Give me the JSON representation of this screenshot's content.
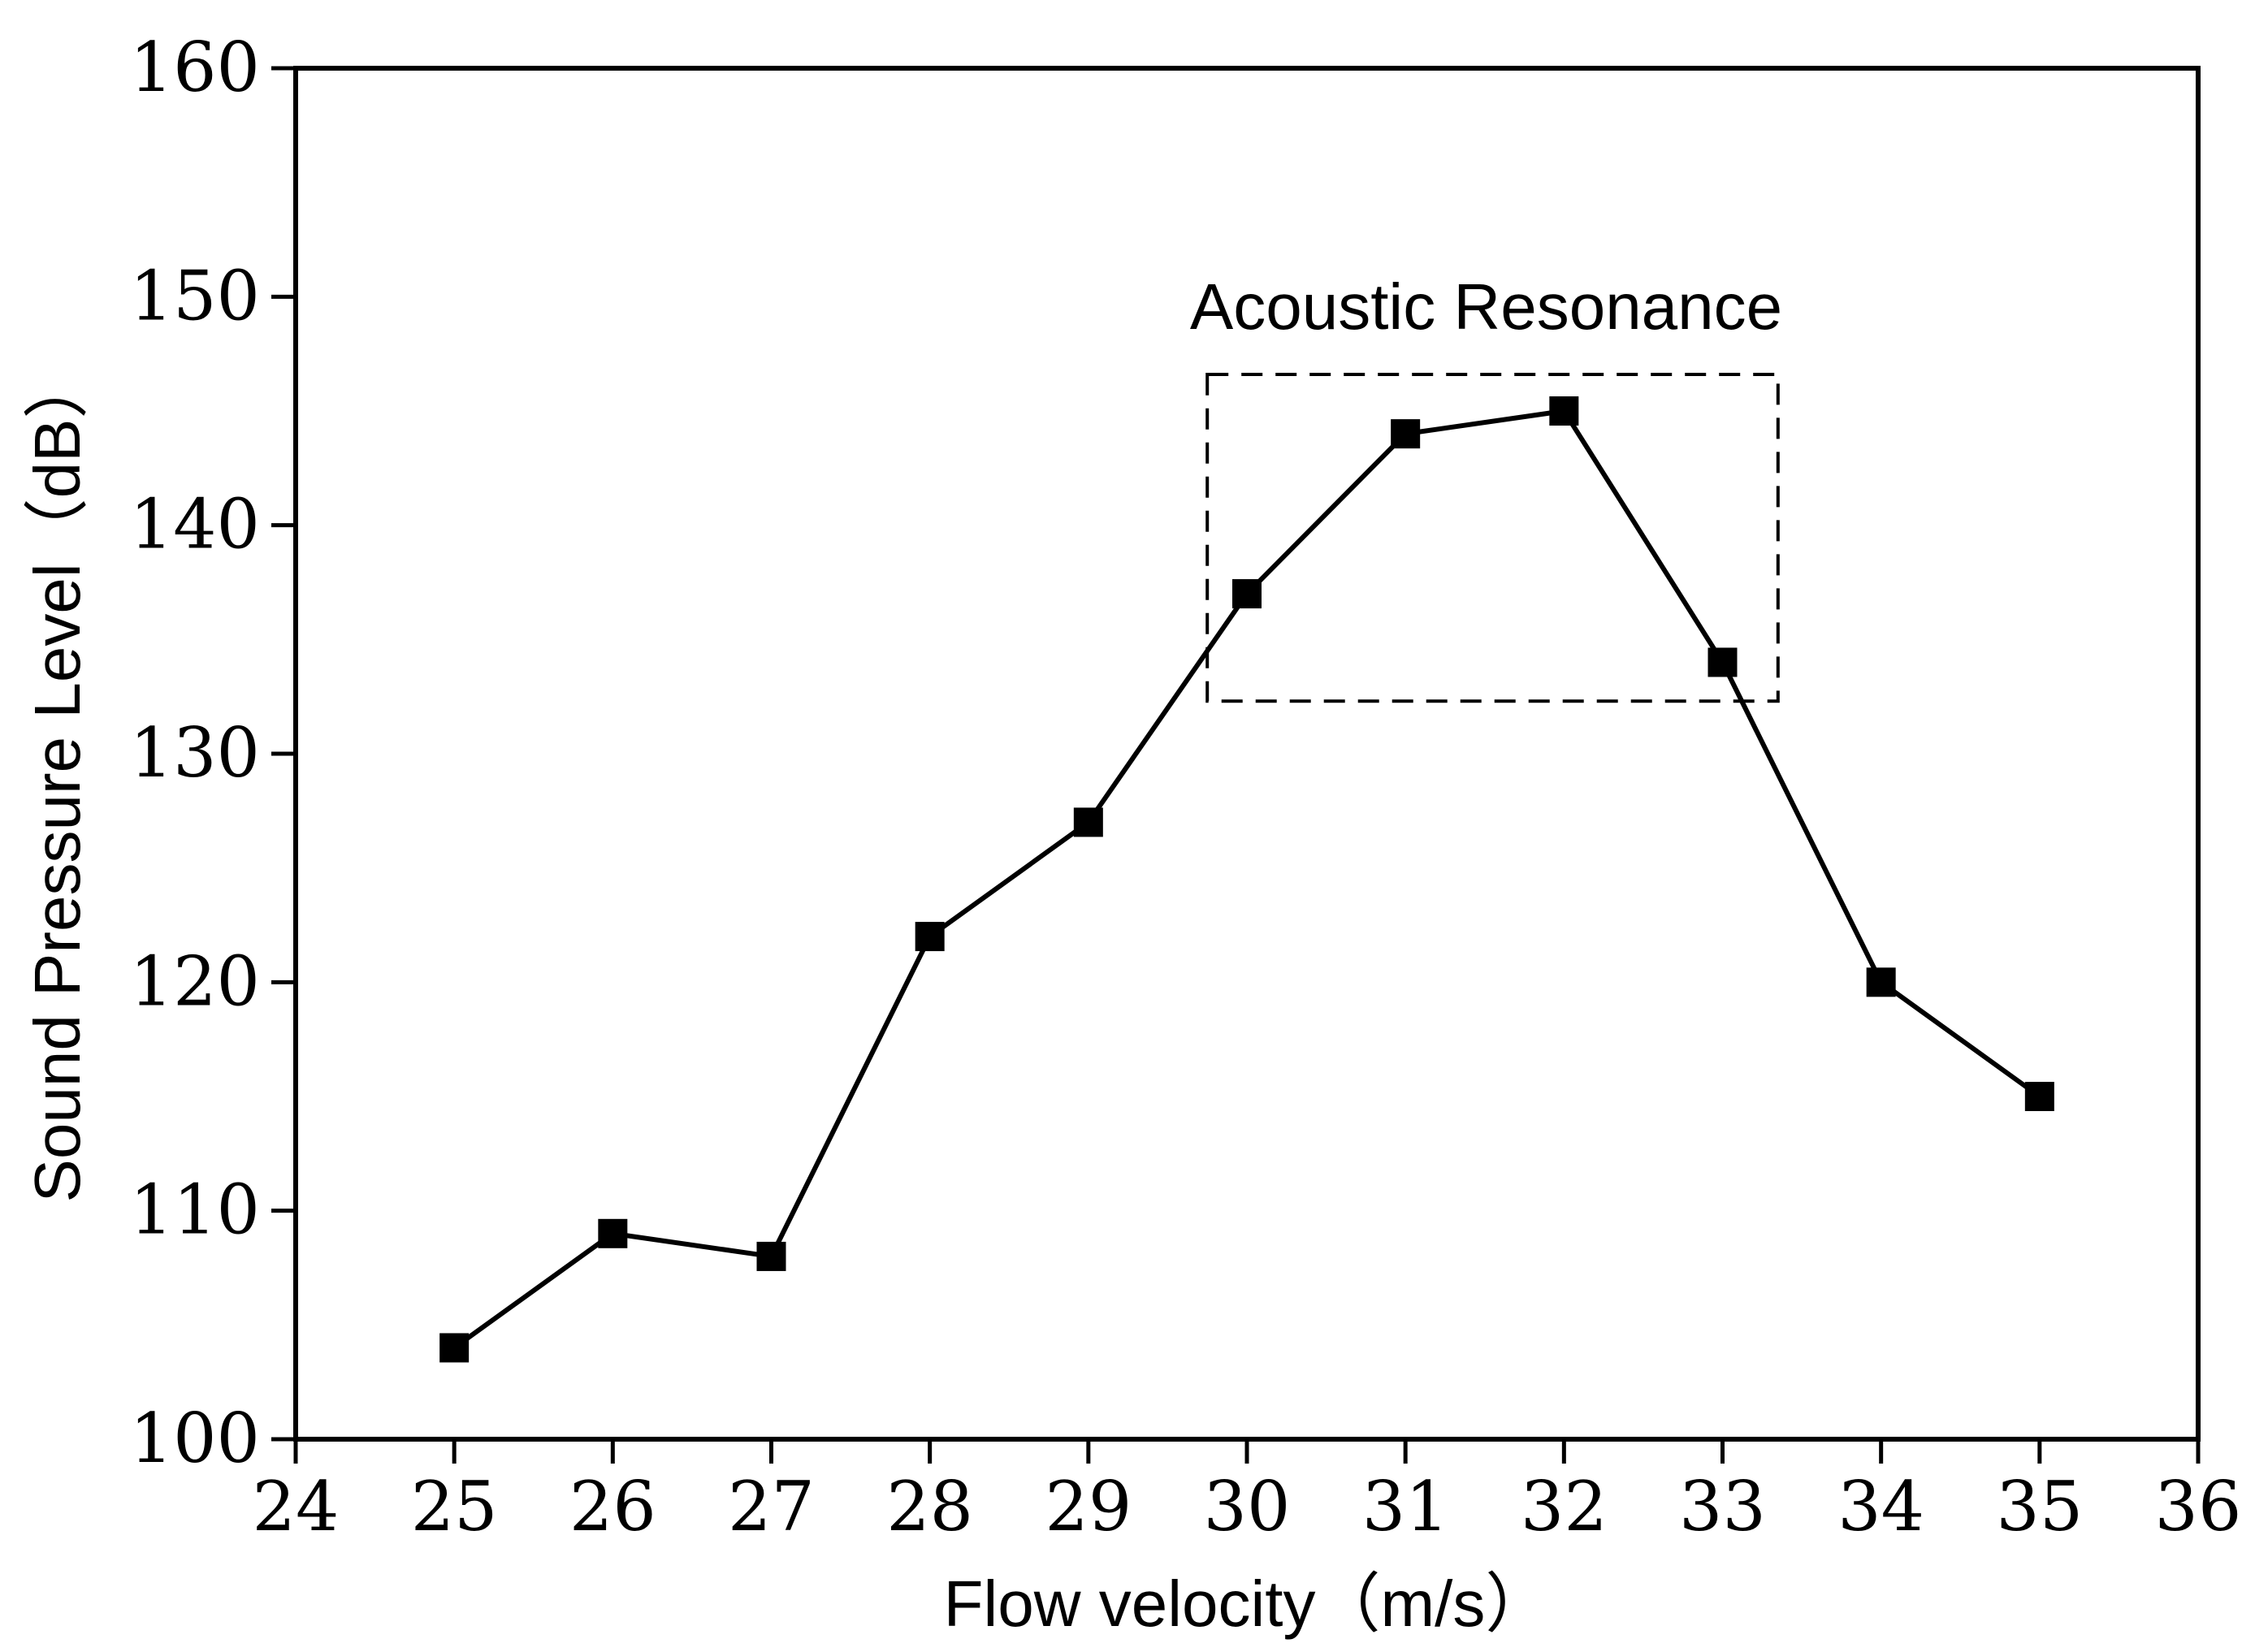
{
  "chart_data": {
    "type": "line",
    "title": "",
    "xlabel": "Flow velocity（m/s）",
    "ylabel": "Sound Pressure Level（dB）",
    "xlim": [
      24,
      36
    ],
    "ylim": [
      100,
      160
    ],
    "xticks": [
      "24",
      "25",
      "26",
      "27",
      "28",
      "29",
      "30",
      "31",
      "32",
      "33",
      "34",
      "35",
      "36"
    ],
    "yticks": [
      "100",
      "110",
      "120",
      "130",
      "140",
      "150",
      "160"
    ],
    "grid": false,
    "legend": "none",
    "marker": "square",
    "color": "#000000",
    "series": [
      {
        "x": [
          25,
          26,
          27,
          28,
          29,
          30,
          31,
          32,
          33,
          34,
          35
        ],
        "y": [
          104,
          109,
          108,
          122,
          127,
          137,
          144,
          145,
          134,
          120,
          115
        ]
      }
    ],
    "annotations": [
      {
        "text": "Acoustic Resonance",
        "box_x": [
          29.75,
          33.35
        ],
        "box_y": [
          132.3,
          146.6
        ],
        "style": "dashed"
      }
    ]
  }
}
